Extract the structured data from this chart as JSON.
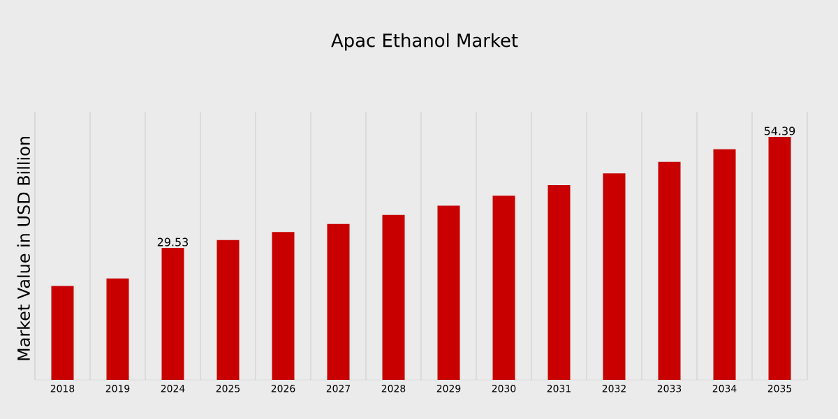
{
  "chart_data": {
    "type": "bar",
    "title": "Apac Ethanol Market",
    "ylabel": "Market Value in USD Billion",
    "categories": [
      "2018",
      "2019",
      "2024",
      "2025",
      "2026",
      "2027",
      "2028",
      "2029",
      "2030",
      "2031",
      "2032",
      "2033",
      "2034",
      "2035"
    ],
    "values": [
      21.0,
      22.7,
      29.53,
      31.3,
      33.1,
      34.9,
      36.9,
      39.0,
      41.2,
      43.6,
      46.2,
      48.8,
      51.6,
      54.39
    ],
    "value_labels": [
      null,
      null,
      "29.53",
      null,
      null,
      null,
      null,
      null,
      null,
      null,
      null,
      null,
      null,
      "54.39"
    ],
    "color": "#c80000",
    "ylim": [
      0,
      60
    ],
    "grid": "x",
    "tick_labels": "x"
  }
}
